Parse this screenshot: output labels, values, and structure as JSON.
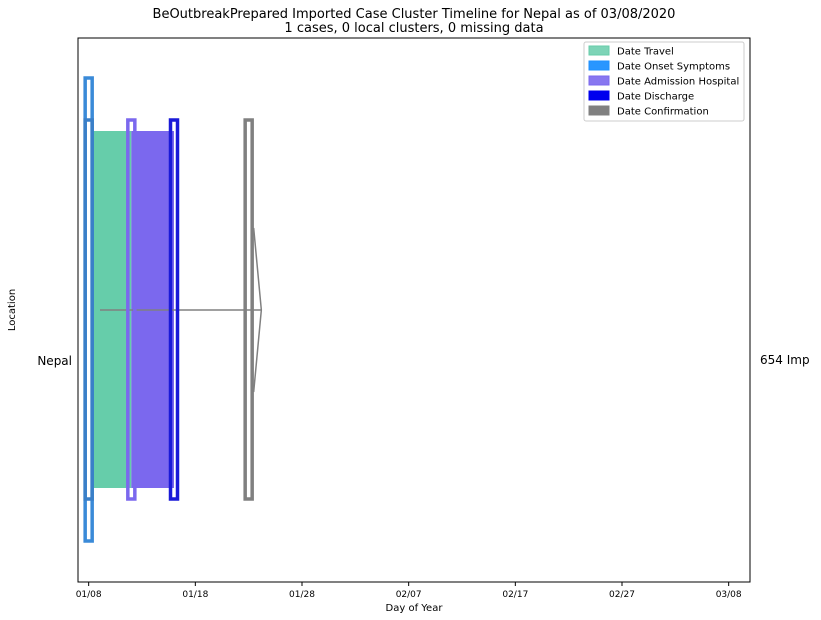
{
  "chart_data": {
    "type": "timeline",
    "title": "BeOutbreakPrepared Imported Case Cluster Timeline for Nepal as of 03/08/2020",
    "subtitle": "1 cases, 0 local clusters, 0 missing data",
    "xlabel": "Day of Year",
    "ylabel": "Location",
    "x_ticks": [
      "01/08",
      "01/18",
      "01/28",
      "02/07",
      "02/17",
      "02/27",
      "03/08"
    ],
    "xlim": [
      "01/07",
      "03/10"
    ],
    "category": "Nepal",
    "right_label": "654 Imp",
    "legend_position": "top-right",
    "legend": [
      {
        "name": "Date Travel",
        "color": "#66cdaa"
      },
      {
        "name": "Date Onset Symptoms",
        "color": "#1e90ff"
      },
      {
        "name": "Date Admission Hospital",
        "color": "#7b68ee"
      },
      {
        "name": "Date Discharge",
        "color": "#0000ee"
      },
      {
        "name": "Date Confirmation",
        "color": "#808080"
      }
    ],
    "events": {
      "travel": {
        "start": "01/08",
        "end": "01/12"
      },
      "onset": "01/08",
      "admission": {
        "start": "01/12",
        "end": "01/16"
      },
      "discharge": "01/16",
      "confirmation": "01/23",
      "arrow_end": "01/24"
    }
  }
}
